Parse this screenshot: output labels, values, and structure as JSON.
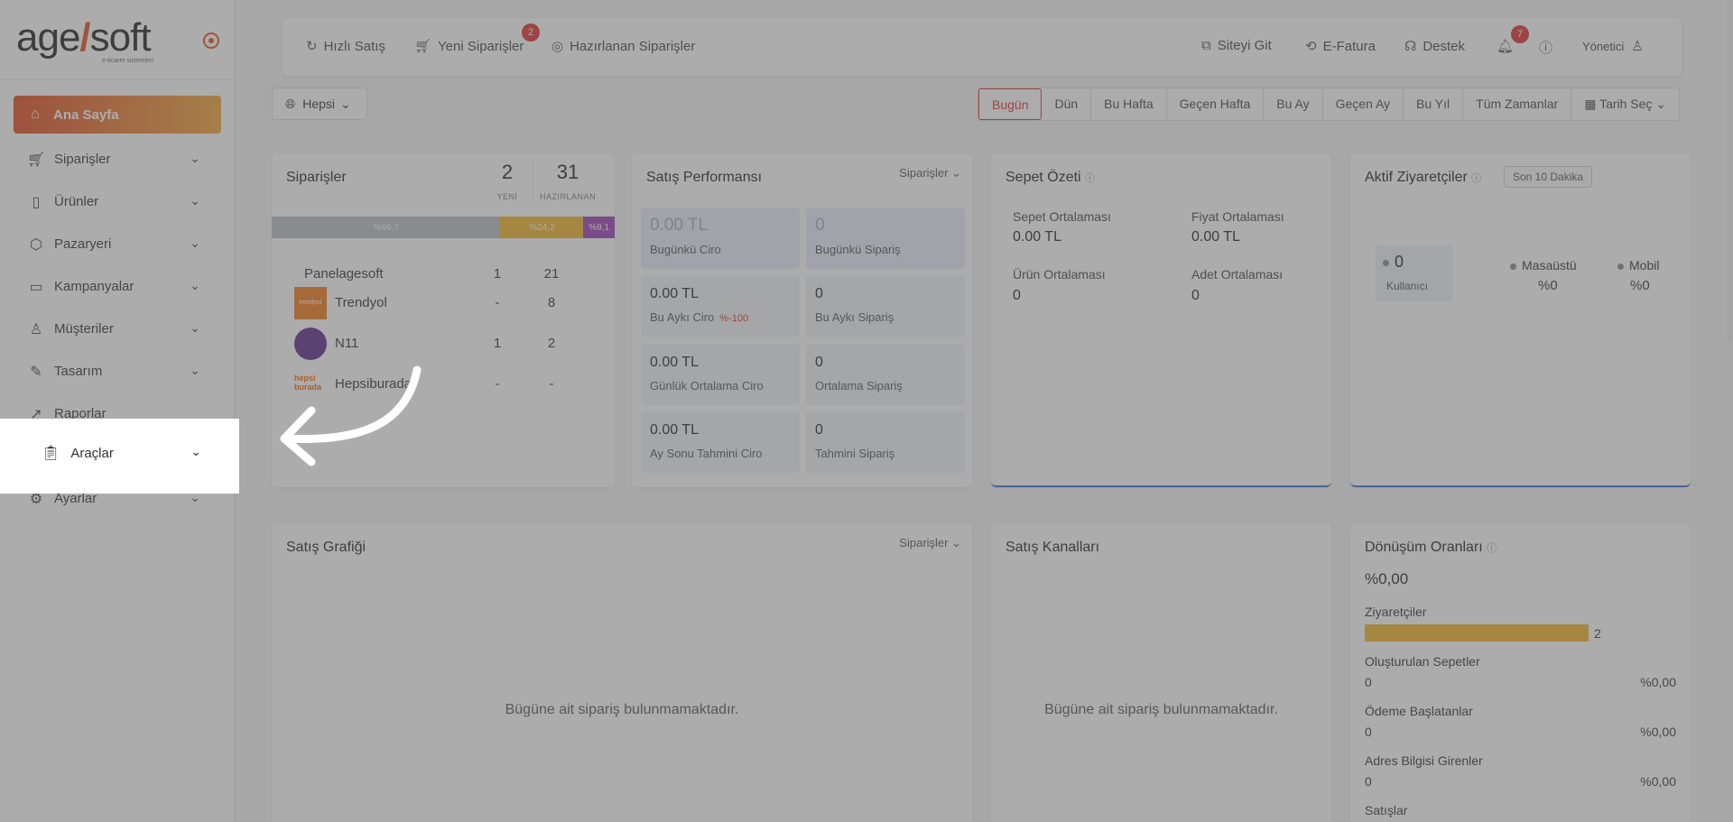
{
  "brand": {
    "logo_main": "age",
    "logo_slash": "/",
    "logo_rest": "soft",
    "logo_sub": "e-ticaret sistemleri",
    "accent": "#e0501e"
  },
  "sidebar": {
    "items": [
      {
        "label": "Ana Sayfa",
        "icon": "home-icon"
      },
      {
        "label": "Siparişler",
        "icon": "cart-icon"
      },
      {
        "label": "Ürünler",
        "icon": "book-icon"
      },
      {
        "label": "Pazaryeri",
        "icon": "box-icon"
      },
      {
        "label": "Kampanyalar",
        "icon": "basket-icon"
      },
      {
        "label": "Müşteriler",
        "icon": "user-icon"
      },
      {
        "label": "Tasarım",
        "icon": "pen-icon"
      },
      {
        "label": "Raporlar",
        "icon": "chart-icon"
      },
      {
        "label": "Araçlar",
        "icon": "clipboard-icon"
      },
      {
        "label": "Ayarlar",
        "icon": "gear-icon"
      }
    ]
  },
  "topbar": {
    "hizli_satis": "Hızlı Satış",
    "yeni_siparisler": "Yeni Siparişler",
    "yeni_siparisler_badge": "2",
    "hazirlanan": "Hazırlanan Siparişler",
    "siteyi_git": "Siteyi Git",
    "e_fatura": "E-Fatura",
    "destek": "Destek",
    "notif_badge": "7",
    "user": "Yönetici"
  },
  "filters": {
    "scope": "Hepsi",
    "ranges": [
      "Bugün",
      "Dün",
      "Bu Hafta",
      "Geçen Hafta",
      "Bu Ay",
      "Geçen Ay",
      "Bu Yıl",
      "Tüm Zamanlar",
      "Tarih Seç"
    ],
    "selected": "Bugün"
  },
  "orders": {
    "title": "Siparişler",
    "new_count": "2",
    "new_label": "YENİ",
    "prepared_count": "31",
    "prepared_label": "HAZIRLANAN",
    "segments": [
      {
        "label": "%66,7",
        "pct": 66.7,
        "color": "#b9bcc2"
      },
      {
        "label": "%24,2",
        "pct": 24.2,
        "color": "#f0b429"
      },
      {
        "label": "%9,1",
        "pct": 9.1,
        "color": "#9b3fb5"
      }
    ],
    "rows": [
      {
        "name": "Panelagesoft",
        "c1": "1",
        "c2": "21"
      },
      {
        "name": "Trendyol",
        "c1": "-",
        "c2": "8"
      },
      {
        "name": "N11",
        "c1": "1",
        "c2": "2"
      },
      {
        "name": "Hepsiburada",
        "c1": "-",
        "c2": "-"
      }
    ],
    "trendyol_logo": "trendyol",
    "hb_logo_1": "hepsi",
    "hb_logo_2": "burada"
  },
  "performance": {
    "title": "Satış Performansı",
    "dropdown": "Siparişler",
    "boxes": [
      {
        "value": "0.00 TL",
        "label": "Bugünkü Ciro"
      },
      {
        "value": "0",
        "label": "Bugünkü Sipariş"
      },
      {
        "value": "0.00 TL",
        "label": "Bu Aykı Ciro",
        "pct": "%-100"
      },
      {
        "value": "0",
        "label": "Bu Aykı Sipariş"
      },
      {
        "value": "0.00 TL",
        "label": "Günlük Ortalama Ciro"
      },
      {
        "value": "0",
        "label": "Ortalama Sipariş"
      },
      {
        "value": "0.00 TL",
        "label": "Ay Sonu Tahmini Ciro"
      },
      {
        "value": "0",
        "label": "Tahmini Sipariş"
      }
    ]
  },
  "basket": {
    "title": "Sepet Özeti",
    "sepet_ort_label": "Sepet Ortalaması",
    "sepet_ort": "0.00 TL",
    "fiyat_ort_label": "Fiyat Ortalaması",
    "fiyat_ort": "0.00 TL",
    "urun_ort_label": "Ürün Ortalaması",
    "urun_ort": "0",
    "adet_ort_label": "Adet Ortalaması",
    "adet_ort": "0"
  },
  "visitors": {
    "title": "Aktif Ziyaretçiler",
    "tag": "Son 10 Dakika",
    "users": "0",
    "users_label": "Kullanıcı",
    "desktop_label": "Masaüstü",
    "desktop": "%0",
    "mobile_label": "Mobil",
    "mobile": "%0"
  },
  "sales_chart": {
    "title": "Satış Grafiği",
    "dropdown": "Siparişler",
    "empty": "Bügüne ait sipariş bulunmamaktadır."
  },
  "channels": {
    "title": "Satış Kanalları",
    "empty": "Bügüne ait sipariş bulunmamaktadır."
  },
  "conversion": {
    "title": "Dönüşüm Oranları",
    "rate": "%0,00",
    "visitors_label": "Ziyaretçiler",
    "visitors_value": "2",
    "visitors_fill": 1.0,
    "created_label": "Oluşturulan Sepetler",
    "created_value": "0",
    "created_pct": "%0,00",
    "payment_label": "Ödeme Başlatanlar",
    "payment_value": "0",
    "payment_pct": "%0,00",
    "address_label": "Adres Bilgisi Girenler",
    "address_value": "0",
    "address_pct": "%0,00",
    "sales_label": "Satışlar"
  }
}
